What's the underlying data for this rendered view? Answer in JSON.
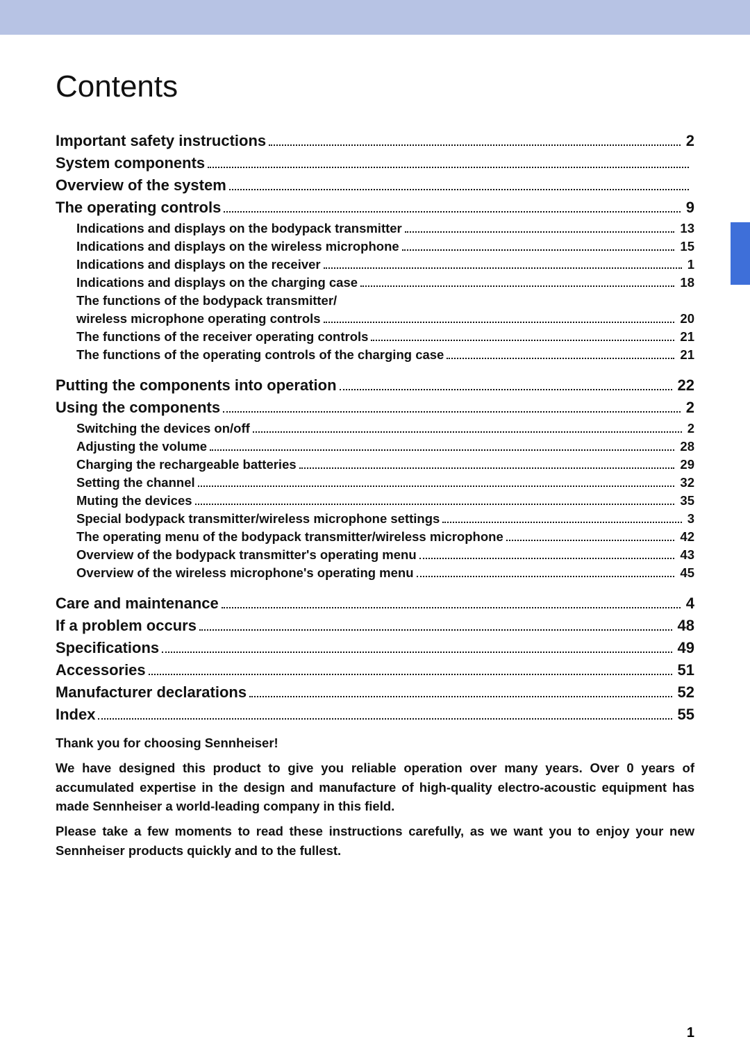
{
  "title": "Contents",
  "toc": [
    {
      "level": 1,
      "label": "Important safety instructions",
      "page": "2"
    },
    {
      "level": 1,
      "label": "System components",
      "page": ""
    },
    {
      "level": 1,
      "label": "Overview of the system",
      "page": ""
    },
    {
      "level": 1,
      "label": "The operating controls",
      "page": "9"
    },
    {
      "level": 2,
      "label": "Indications and displays on the bodypack transmitter",
      "page": "13"
    },
    {
      "level": 2,
      "label": "Indications and displays on the wireless microphone",
      "page": "15"
    },
    {
      "level": 2,
      "label": "Indications and displays on the receiver",
      "page": "1"
    },
    {
      "level": 2,
      "label": "Indications and displays on the charging case",
      "page": "18"
    },
    {
      "level": 2,
      "label": "The functions of the bodypack transmitter/",
      "label2": "wireless microphone operating controls",
      "page": "20"
    },
    {
      "level": 2,
      "label": "The functions of the receiver operating controls",
      "page": "21"
    },
    {
      "level": 2,
      "label": "The functions of the operating controls of the charging case",
      "page": "21"
    },
    {
      "level": 1,
      "label": "Putting the components into operation",
      "page": "22"
    },
    {
      "level": 1,
      "label": "Using the components",
      "page": "2"
    },
    {
      "level": 2,
      "label": "Switching the devices on/off",
      "page": "2"
    },
    {
      "level": 2,
      "label": "Adjusting the volume",
      "page": "28"
    },
    {
      "level": 2,
      "label": "Charging the rechargeable batteries",
      "page": "29"
    },
    {
      "level": 2,
      "label": "Setting the channel",
      "page": "32"
    },
    {
      "level": 2,
      "label": "Muting the devices",
      "page": "35"
    },
    {
      "level": 2,
      "label": "Special bodypack transmitter/wireless microphone settings",
      "page": "3"
    },
    {
      "level": 2,
      "label": "The operating menu of the bodypack transmitter/wireless microphone",
      "page": "42"
    },
    {
      "level": 2,
      "label": "Overview of the bodypack transmitter's operating menu",
      "page": "43"
    },
    {
      "level": 2,
      "label": "Overview of the wireless microphone's operating menu",
      "page": "45"
    },
    {
      "level": 1,
      "label": "Care and maintenance",
      "page": "4"
    },
    {
      "level": 1,
      "label": "If a problem occurs",
      "page": "48"
    },
    {
      "level": 1,
      "label": "Specifications",
      "page": "49"
    },
    {
      "level": 1,
      "label": "Accessories",
      "page": "51"
    },
    {
      "level": 1,
      "label": "Manufacturer declarations",
      "page": "52"
    },
    {
      "level": 1,
      "label": "Index",
      "page": "55"
    }
  ],
  "closing": {
    "line1": "Thank you for choosing Sennheiser!",
    "para1": "We have designed this product to give you reliable operation over many years. Over 0 years of accumulated expertise in the design and manufacture of high-quality electro-acoustic equipment has made Sennheiser a world-leading company in this field.",
    "para2": "Please take a few moments to read these instructions carefully, as we want you to enjoy your new Sennheiser products quickly and to the fullest."
  },
  "pageNumber": "1",
  "colors": {
    "header_bar": "#b7c3e4",
    "side_tab": "#3e6fd9",
    "text": "#111111",
    "background": "#ffffff"
  }
}
